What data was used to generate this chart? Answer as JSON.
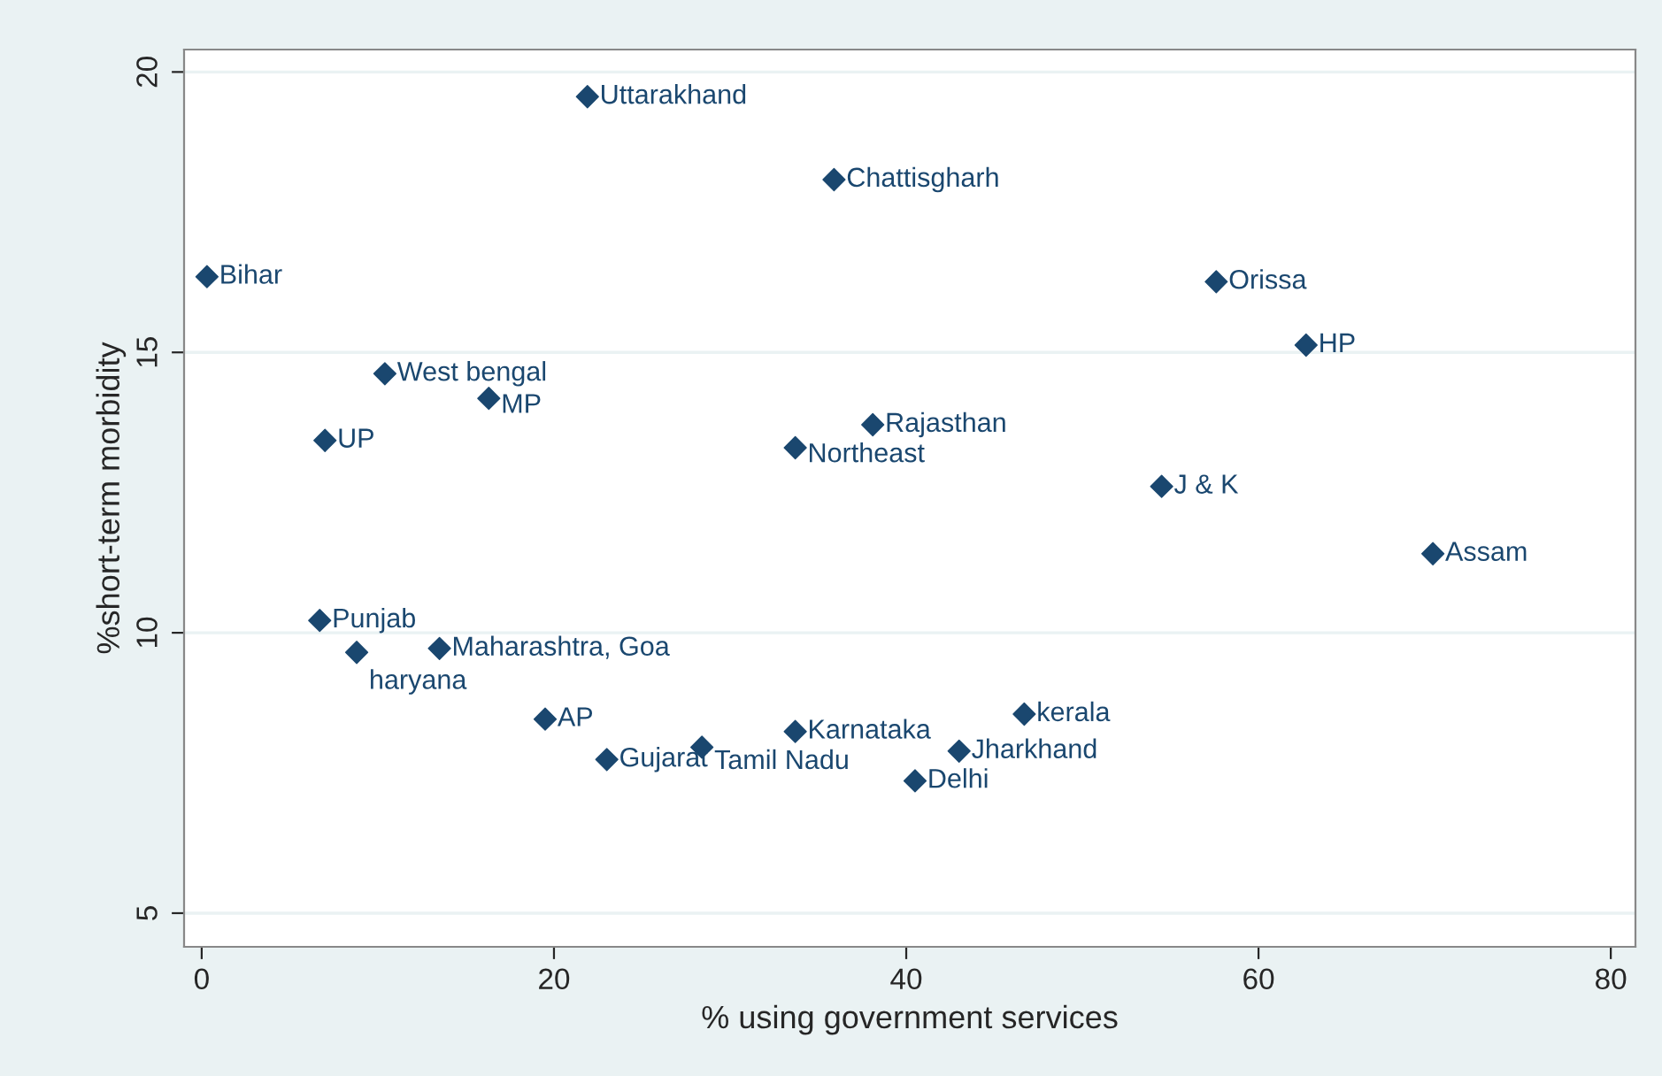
{
  "chart_data": {
    "type": "scatter",
    "xlabel": "% using government services",
    "ylabel": "%short-term morbidity",
    "series": [
      {
        "color": "#1a476f",
        "x": [
          21.9,
          35.9,
          0.3,
          57.6,
          62.7,
          10.4,
          16.3,
          7.0,
          38.1,
          33.7,
          54.5,
          69.9,
          6.7,
          13.5,
          8.8,
          19.5,
          46.7,
          33.7,
          28.4,
          43.0,
          23.0,
          40.5
        ],
        "values": [
          19.56,
          18.08,
          16.35,
          16.26,
          15.13,
          14.62,
          14.18,
          13.43,
          13.71,
          13.3,
          12.61,
          11.41,
          10.22,
          9.72,
          9.65,
          8.46,
          8.55,
          8.24,
          7.96,
          7.89,
          7.74,
          7.36
        ]
      }
    ],
    "annotations": [
      {
        "text": "Uttarakhand",
        "x": 21.9,
        "y": 19.56
      },
      {
        "text": "Chattisgharh",
        "x": 35.9,
        "y": 18.08
      },
      {
        "text": "Bihar",
        "x": 0.3,
        "y": 16.35
      },
      {
        "text": "Orissa",
        "x": 57.6,
        "y": 16.26
      },
      {
        "text": "HP",
        "x": 62.7,
        "y": 15.13
      },
      {
        "text": "West bengal",
        "x": 10.4,
        "y": 14.62
      },
      {
        "text": "MP",
        "x": 16.3,
        "y": 14.18
      },
      {
        "text": "UP",
        "x": 7.0,
        "y": 13.43
      },
      {
        "text": "Rajasthan",
        "x": 38.1,
        "y": 13.71
      },
      {
        "text": "Northeast",
        "x": 33.7,
        "y": 13.3
      },
      {
        "text": "J & K",
        "x": 54.5,
        "y": 12.61
      },
      {
        "text": "Assam",
        "x": 69.9,
        "y": 11.41
      },
      {
        "text": "Punjab",
        "x": 6.7,
        "y": 10.22
      },
      {
        "text": "Maharashtra, Goa",
        "x": 13.5,
        "y": 9.72
      },
      {
        "text": "haryana",
        "x": 8.8,
        "y": 9.65
      },
      {
        "text": "AP",
        "x": 19.5,
        "y": 8.46
      },
      {
        "text": "kerala",
        "x": 46.7,
        "y": 8.55
      },
      {
        "text": "Karnataka",
        "x": 33.7,
        "y": 8.24
      },
      {
        "text": "Tamil Nadu",
        "x": 28.4,
        "y": 7.96
      },
      {
        "text": "Jharkhand",
        "x": 43.0,
        "y": 7.89
      },
      {
        "text": "Gujarat",
        "x": 23.0,
        "y": 7.74
      },
      {
        "text": "Delhi",
        "x": 40.5,
        "y": 7.36
      }
    ],
    "xlim": [
      -1.0,
      81.4
    ],
    "ylim": [
      4.4,
      20.4
    ],
    "xticks": [
      0,
      20,
      40,
      60,
      80
    ],
    "yticks": [
      5,
      10,
      15,
      20
    ],
    "grid": "y",
    "marker": "diamond",
    "legend": false
  }
}
